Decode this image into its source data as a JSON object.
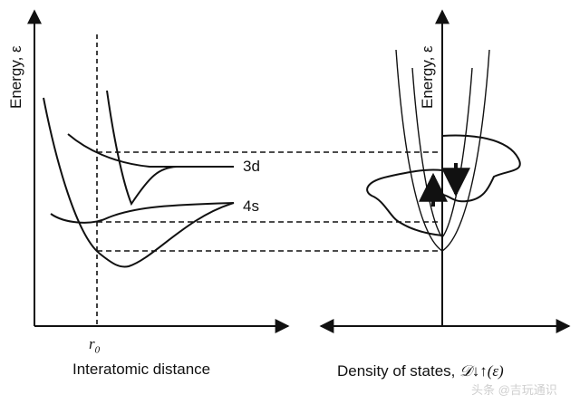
{
  "left_panel": {
    "y_axis_label": "Energy, ε",
    "x_axis_label": "Interatomic distance",
    "r0_label": "r",
    "r0_subscript": "0",
    "band_3d_label": "3d",
    "band_4s_label": "4s"
  },
  "right_panel": {
    "y_axis_label": "Energy, ε",
    "x_axis_label": "Density of states,",
    "x_axis_symbol": "𝒟↓↑(ε)"
  },
  "watermark": "头条 @吉玩通识"
}
